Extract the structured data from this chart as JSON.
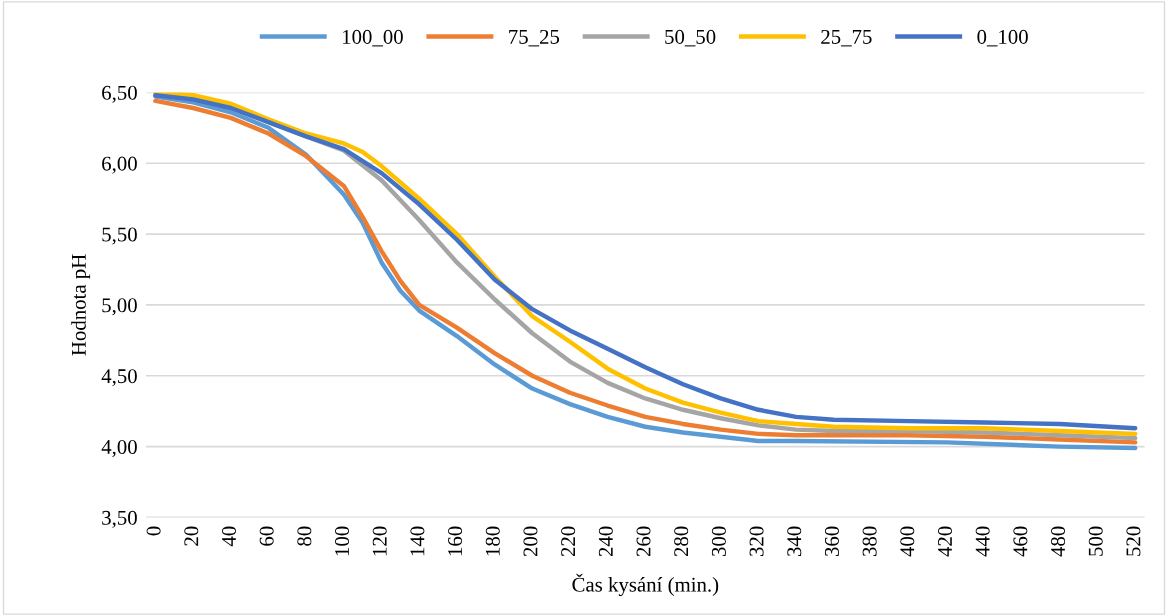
{
  "chart_data": {
    "type": "line",
    "xlabel": "Čas kysání (min.)",
    "ylabel": "Hodnota pH",
    "xlim": [
      -5,
      525
    ],
    "xticks": [
      0,
      20,
      40,
      60,
      80,
      100,
      120,
      140,
      160,
      180,
      200,
      220,
      240,
      260,
      280,
      300,
      320,
      340,
      360,
      380,
      400,
      420,
      440,
      460,
      480,
      500,
      520
    ],
    "ylim": [
      3.5,
      6.5
    ],
    "yticks": [
      {
        "value": 3.5,
        "label": "3,50"
      },
      {
        "value": 4.0,
        "label": "4,00"
      },
      {
        "value": 4.5,
        "label": "4,50"
      },
      {
        "value": 5.0,
        "label": "5,00"
      },
      {
        "value": 5.5,
        "label": "5,50"
      },
      {
        "value": 6.0,
        "label": "6,00"
      },
      {
        "value": 6.5,
        "label": "6,50"
      }
    ],
    "grid": "y",
    "legend": "top",
    "line_style": "solid",
    "marker": "none",
    "series": [
      {
        "name": "100_00",
        "color": "#5b9bd5",
        "x": [
          0,
          20,
          40,
          60,
          80,
          100,
          110,
          120,
          130,
          140,
          160,
          180,
          200,
          220,
          240,
          260,
          280,
          300,
          320,
          340,
          420,
          460,
          480,
          520
        ],
        "values": [
          6.47,
          6.43,
          6.36,
          6.25,
          6.06,
          5.78,
          5.58,
          5.3,
          5.1,
          4.96,
          4.78,
          4.58,
          4.41,
          4.3,
          4.21,
          4.14,
          4.1,
          4.07,
          4.04,
          4.04,
          4.03,
          4.01,
          4.0,
          3.99
        ]
      },
      {
        "name": "75_25",
        "color": "#ed7d31",
        "x": [
          0,
          20,
          40,
          60,
          80,
          100,
          110,
          120,
          130,
          140,
          160,
          180,
          200,
          220,
          240,
          260,
          280,
          300,
          320,
          340,
          400,
          440,
          480,
          520
        ],
        "values": [
          6.44,
          6.39,
          6.32,
          6.21,
          6.05,
          5.84,
          5.62,
          5.38,
          5.17,
          5.0,
          4.84,
          4.66,
          4.5,
          4.38,
          4.29,
          4.21,
          4.16,
          4.12,
          4.09,
          4.08,
          4.08,
          4.07,
          4.05,
          4.03
        ]
      },
      {
        "name": "50_50",
        "color": "#a5a5a5",
        "x": [
          0,
          20,
          40,
          60,
          80,
          100,
          120,
          140,
          160,
          180,
          200,
          220,
          240,
          260,
          280,
          300,
          320,
          340,
          360,
          400,
          440,
          480,
          520
        ],
        "values": [
          6.48,
          6.45,
          6.39,
          6.29,
          6.19,
          6.09,
          5.88,
          5.6,
          5.3,
          5.04,
          4.8,
          4.6,
          4.45,
          4.34,
          4.26,
          4.2,
          4.15,
          4.12,
          4.11,
          4.11,
          4.1,
          4.08,
          4.06
        ]
      },
      {
        "name": "25_75",
        "color": "#ffc000",
        "x": [
          0,
          20,
          40,
          60,
          80,
          100,
          110,
          120,
          140,
          160,
          180,
          200,
          220,
          240,
          260,
          280,
          300,
          320,
          340,
          360,
          400,
          440,
          480,
          520
        ],
        "values": [
          6.5,
          6.48,
          6.42,
          6.31,
          6.21,
          6.14,
          6.08,
          5.98,
          5.75,
          5.5,
          5.2,
          4.92,
          4.74,
          4.55,
          4.41,
          4.31,
          4.24,
          4.18,
          4.16,
          4.14,
          4.13,
          4.13,
          4.11,
          4.09
        ]
      },
      {
        "name": "0_100",
        "color": "#4472c4",
        "x": [
          0,
          20,
          40,
          60,
          80,
          100,
          120,
          140,
          160,
          180,
          200,
          220,
          240,
          260,
          280,
          300,
          320,
          340,
          360,
          400,
          440,
          480,
          520
        ],
        "values": [
          6.48,
          6.45,
          6.39,
          6.29,
          6.19,
          6.1,
          5.93,
          5.71,
          5.46,
          5.18,
          4.97,
          4.82,
          4.69,
          4.56,
          4.44,
          4.34,
          4.26,
          4.21,
          4.19,
          4.18,
          4.17,
          4.16,
          4.13
        ]
      }
    ]
  }
}
